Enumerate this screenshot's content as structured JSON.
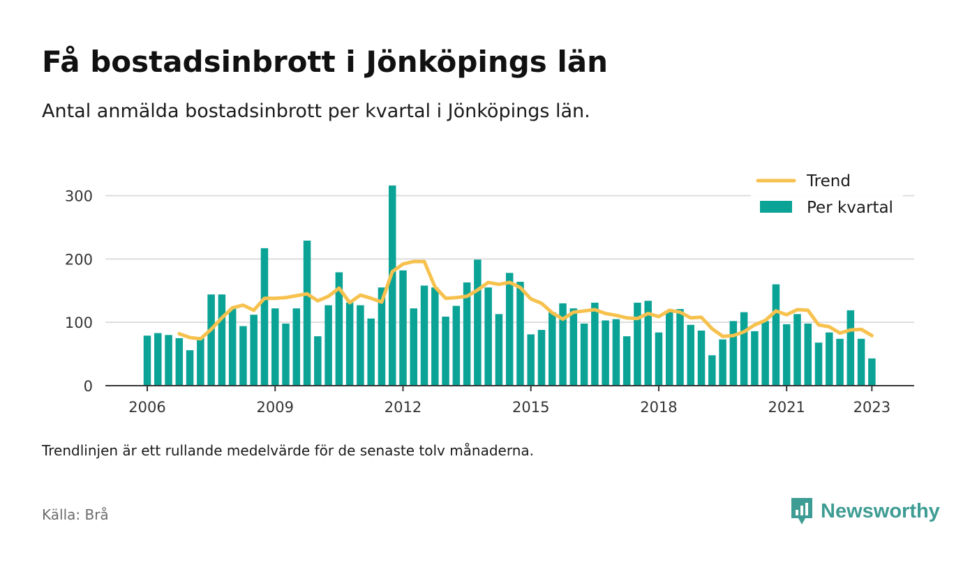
{
  "title": "Få bostadsinbrott i Jönköpings län",
  "subtitle": "Antal anmälda bostadsinbrott per kvartal i Jönköpings län.",
  "footnote": "Trendlinjen är ett rullande medelvärde för de senaste tolv månaderna.",
  "source": "Källa: Brå",
  "brand": "Newsworthy",
  "colors": {
    "bars": "#0aa396",
    "trend": "#f7c14e",
    "grid": "#dddddd",
    "axis": "#333333",
    "brand": "#3d9c93"
  },
  "chart_data": {
    "type": "bar",
    "grid": true,
    "legend_position": "top-right",
    "ylim": [
      0,
      340
    ],
    "y_ticks": [
      0,
      100,
      200,
      300
    ],
    "y_tick_labels": [
      "0",
      "100",
      "200",
      "300"
    ],
    "x_ticks": [
      2006,
      2009,
      2012,
      2015,
      2018,
      2021,
      2023
    ],
    "x_tick_labels": [
      "2006",
      "2009",
      "2012",
      "2015",
      "2018",
      "2021",
      "2023"
    ],
    "legend": [
      "Trend",
      "Per kvartal"
    ],
    "x_start_year": 2006,
    "series": [
      {
        "name": "Per kvartal",
        "type": "bar",
        "values": [
          79,
          83,
          80,
          75,
          56,
          77,
          144,
          144,
          122,
          94,
          112,
          217,
          122,
          98,
          122,
          229,
          78,
          127,
          179,
          131,
          127,
          106,
          155,
          316,
          182,
          122,
          158,
          155,
          109,
          126,
          163,
          199,
          155,
          113,
          178,
          164,
          81,
          88,
          116,
          130,
          122,
          98,
          131,
          103,
          105,
          78,
          131,
          134,
          84,
          117,
          121,
          96,
          87,
          48,
          73,
          102,
          116,
          86,
          102,
          160,
          97,
          113,
          98,
          68,
          84,
          74,
          119,
          74,
          43
        ]
      },
      {
        "name": "Trend",
        "type": "line",
        "start_index": 3,
        "values": [
          82,
          76,
          74,
          89,
          107,
          123,
          127,
          119,
          138,
          138,
          139,
          142,
          145,
          134,
          141,
          154,
          131,
          143,
          138,
          132,
          180,
          192,
          196,
          196,
          156,
          138,
          139,
          141,
          151,
          163,
          160,
          163,
          155,
          137,
          130,
          115,
          105,
          116,
          118,
          120,
          114,
          111,
          107,
          106,
          114,
          109,
          119,
          116,
          107,
          108,
          90,
          78,
          79,
          85,
          96,
          103,
          118,
          112,
          120,
          119,
          96,
          93,
          83,
          88,
          89,
          79
        ]
      }
    ]
  }
}
